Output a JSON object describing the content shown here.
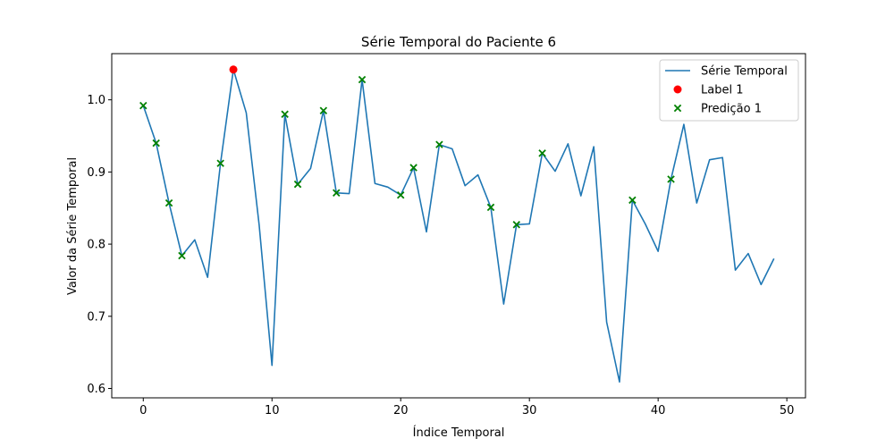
{
  "chart_data": {
    "type": "line",
    "title": "Série Temporal do Paciente 6",
    "xlabel": "Índice Temporal",
    "ylabel": "Valor da Série Temporal",
    "xlim": [
      -2.45,
      51.45
    ],
    "ylim": [
      0.587,
      1.064
    ],
    "xticks": [
      0,
      10,
      20,
      30,
      40,
      50
    ],
    "yticks": [
      0.6,
      0.7,
      0.8,
      0.9,
      1.0
    ],
    "grid": false,
    "legend_position": "top-right",
    "series": [
      {
        "name": "Série Temporal",
        "kind": "line",
        "color": "#1f77b4",
        "x": [
          0,
          1,
          2,
          3,
          4,
          5,
          6,
          7,
          8,
          9,
          10,
          11,
          12,
          13,
          14,
          15,
          16,
          17,
          18,
          19,
          20,
          21,
          22,
          23,
          24,
          25,
          26,
          27,
          28,
          29,
          30,
          31,
          32,
          33,
          34,
          35,
          36,
          37,
          38,
          39,
          40,
          41,
          42,
          43,
          44,
          45,
          46,
          47,
          48,
          49
        ],
        "y": [
          0.992,
          0.94,
          0.857,
          0.784,
          0.806,
          0.754,
          0.912,
          1.042,
          0.982,
          0.827,
          0.632,
          0.98,
          0.883,
          0.905,
          0.985,
          0.871,
          0.87,
          1.028,
          0.884,
          0.879,
          0.868,
          0.906,
          0.817,
          0.938,
          0.932,
          0.881,
          0.896,
          0.851,
          0.717,
          0.827,
          0.828,
          0.926,
          0.901,
          0.939,
          0.867,
          0.935,
          0.692,
          0.609,
          0.861,
          0.828,
          0.79,
          0.89,
          0.966,
          0.857,
          0.917,
          0.92,
          0.764,
          0.787,
          0.744,
          0.78
        ]
      },
      {
        "name": "Label 1",
        "kind": "scatter",
        "marker": "circle",
        "color": "#ff0000",
        "x": [
          7
        ],
        "y": [
          1.042
        ]
      },
      {
        "name": "Predição 1",
        "kind": "scatter",
        "marker": "x",
        "color": "#008000",
        "x": [
          0,
          1,
          2,
          3,
          6,
          11,
          12,
          14,
          15,
          17,
          20,
          21,
          23,
          27,
          29,
          31,
          38,
          41
        ],
        "y": [
          0.992,
          0.94,
          0.857,
          0.784,
          0.912,
          0.98,
          0.883,
          0.985,
          0.871,
          1.028,
          0.868,
          0.906,
          0.938,
          0.851,
          0.827,
          0.926,
          0.861,
          0.89
        ]
      }
    ]
  }
}
